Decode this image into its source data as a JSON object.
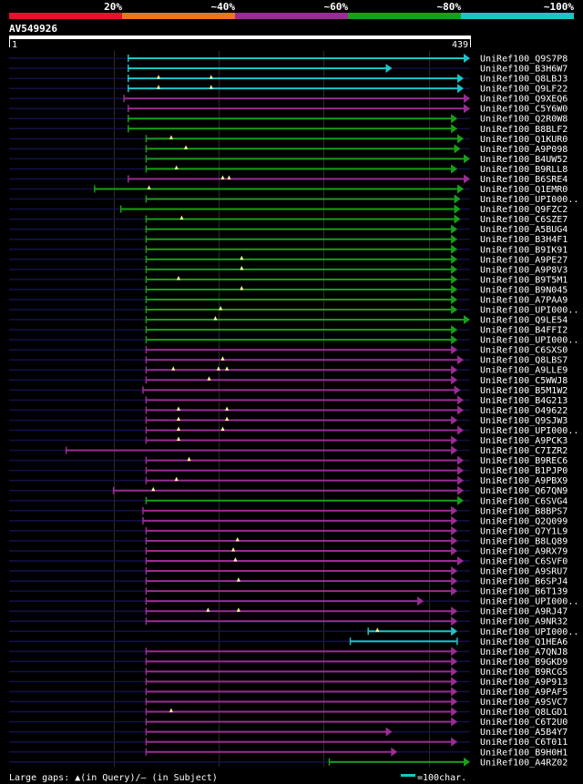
{
  "chart_data": {
    "type": "alignment",
    "query": {
      "name": "AV549926",
      "start_label": "1",
      "end_label": "439",
      "length": 439
    },
    "legend_bands": [
      {
        "label": "20%",
        "color": "#e8102a"
      },
      {
        "label": "~40%",
        "color": "#e8761c"
      },
      {
        "label": "~60%",
        "color": "#9a2c96"
      },
      {
        "label": "~80%",
        "color": "#18a018"
      },
      {
        "label": "~100%",
        "color": "#1cc4c8"
      }
    ],
    "footer": {
      "gaps": "Large gaps: ▲(in Query)/– (in Subject)",
      "scale": "=100char."
    },
    "colors": {
      "cyan": "#1cc4c8",
      "magenta": "#9a2c96",
      "green": "#18a018",
      "dim": "#12124a"
    },
    "hits": [
      {
        "name": "UniRef100_Q9S7P8",
        "color": "cyan",
        "start": 114,
        "end": 439,
        "arrow": true,
        "ld": 0,
        "td": 0,
        "gaps": []
      },
      {
        "name": "UniRef100_B3H6W7",
        "color": "cyan",
        "start": 114,
        "end": 365,
        "arrow": true,
        "ld": 0,
        "td": 0,
        "gaps": []
      },
      {
        "name": "UniRef100_Q8LBJ3",
        "color": "cyan",
        "start": 114,
        "end": 433,
        "arrow": true,
        "ld": 0,
        "td": 0,
        "gaps": [
          143,
          193
        ]
      },
      {
        "name": "UniRef100_Q9LF22",
        "color": "cyan",
        "start": 114,
        "end": 433,
        "arrow": true,
        "ld": 0,
        "td": 0,
        "gaps": [
          143,
          193
        ]
      },
      {
        "name": "UniRef100_Q9XEQ6",
        "color": "magenta",
        "start": 110,
        "end": 439,
        "arrow": true,
        "ld": 0,
        "td": 0,
        "gaps": []
      },
      {
        "name": "UniRef100_C5Y6W0",
        "color": "magenta",
        "start": 114,
        "end": 439,
        "arrow": true,
        "ld": 0,
        "td": 0,
        "gaps": []
      },
      {
        "name": "UniRef100_Q2R0W8",
        "color": "green",
        "start": 114,
        "end": 427,
        "arrow": true,
        "ld": 0,
        "td": 0,
        "gaps": []
      },
      {
        "name": "UniRef100_B8BLF2",
        "color": "green",
        "start": 114,
        "end": 427,
        "arrow": true,
        "ld": 0,
        "td": 0,
        "gaps": []
      },
      {
        "name": "UniRef100_Q1KUR0",
        "color": "green",
        "start": 131,
        "end": 433,
        "arrow": true,
        "ld": 0,
        "td": 0,
        "gaps": [
          155
        ]
      },
      {
        "name": "UniRef100_A9P098",
        "color": "green",
        "start": 131,
        "end": 430,
        "arrow": true,
        "ld": 0,
        "td": 0,
        "gaps": [
          169
        ]
      },
      {
        "name": "UniRef100_B4UW52",
        "color": "green",
        "start": 131,
        "end": 439,
        "arrow": true,
        "ld": 0,
        "td": 0,
        "gaps": []
      },
      {
        "name": "UniRef100_B9RLL8",
        "color": "green",
        "start": 131,
        "end": 427,
        "arrow": true,
        "ld": 0,
        "td": 0,
        "gaps": [
          160
        ]
      },
      {
        "name": "UniRef100_B6SRE4",
        "color": "magenta",
        "start": 114,
        "end": 439,
        "arrow": true,
        "ld": 0,
        "td": 0,
        "gaps": [
          204,
          210
        ]
      },
      {
        "name": "UniRef100_Q1EMR0",
        "color": "green",
        "start": 82,
        "end": 433,
        "arrow": true,
        "ld": 0,
        "td": 0,
        "gaps": [
          134
        ]
      },
      {
        "name": "UniRef100_UPI000..",
        "color": "green",
        "start": 131,
        "end": 430,
        "arrow": true,
        "ld": 0,
        "td": 0,
        "gaps": []
      },
      {
        "name": "UniRef100_Q9FZC2",
        "color": "green",
        "start": 107,
        "end": 430,
        "arrow": true,
        "ld": 0,
        "td": 0,
        "gaps": []
      },
      {
        "name": "UniRef100_C6SZE7",
        "color": "green",
        "start": 131,
        "end": 430,
        "arrow": true,
        "ld": 0,
        "td": 0,
        "gaps": [
          165
        ]
      },
      {
        "name": "UniRef100_A5BUG4",
        "color": "green",
        "start": 131,
        "end": 427,
        "arrow": true,
        "ld": 0,
        "td": 0,
        "gaps": []
      },
      {
        "name": "UniRef100_B3H4F1",
        "color": "green",
        "start": 131,
        "end": 427,
        "arrow": true,
        "ld": 0,
        "td": 0,
        "gaps": []
      },
      {
        "name": "UniRef100_B9IK91",
        "color": "green",
        "start": 131,
        "end": 427,
        "arrow": true,
        "ld": 0,
        "td": 0,
        "gaps": []
      },
      {
        "name": "UniRef100_A9PE27",
        "color": "green",
        "start": 131,
        "end": 427,
        "arrow": true,
        "ld": 0,
        "td": 0,
        "gaps": [
          222
        ]
      },
      {
        "name": "UniRef100_A9P8V3",
        "color": "green",
        "start": 131,
        "end": 427,
        "arrow": true,
        "ld": 0,
        "td": 0,
        "gaps": [
          222
        ]
      },
      {
        "name": "UniRef100_B9T5M1",
        "color": "green",
        "start": 131,
        "end": 427,
        "arrow": true,
        "ld": 0,
        "td": 0,
        "gaps": [
          162
        ]
      },
      {
        "name": "UniRef100_B9N045",
        "color": "green",
        "start": 131,
        "end": 427,
        "arrow": true,
        "ld": 0,
        "td": 0,
        "gaps": [
          222
        ]
      },
      {
        "name": "UniRef100_A7PAA9",
        "color": "green",
        "start": 131,
        "end": 427,
        "arrow": true,
        "ld": 0,
        "td": 0,
        "gaps": []
      },
      {
        "name": "UniRef100_UPI000..",
        "color": "green",
        "start": 131,
        "end": 427,
        "arrow": true,
        "ld": 0,
        "td": 0,
        "gaps": [
          202
        ]
      },
      {
        "name": "UniRef100_Q9LE54",
        "color": "green",
        "start": 131,
        "end": 439,
        "arrow": true,
        "ld": 0,
        "td": 0,
        "gaps": [
          197
        ]
      },
      {
        "name": "UniRef100_B4FFI2",
        "color": "green",
        "start": 131,
        "end": 427,
        "arrow": true,
        "ld": 0,
        "td": 0,
        "gaps": []
      },
      {
        "name": "UniRef100_UPI000..",
        "color": "green",
        "start": 131,
        "end": 427,
        "arrow": true,
        "ld": 0,
        "td": 0,
        "gaps": []
      },
      {
        "name": "UniRef100_C6SXS0",
        "color": "magenta",
        "start": 131,
        "end": 427,
        "arrow": true,
        "ld": 0,
        "td": 0,
        "gaps": []
      },
      {
        "name": "UniRef100_Q8LBS7",
        "color": "magenta",
        "start": 131,
        "end": 433,
        "arrow": true,
        "ld": 0,
        "td": 0,
        "gaps": [
          204
        ]
      },
      {
        "name": "UniRef100_A9LLE9",
        "color": "magenta",
        "start": 131,
        "end": 427,
        "arrow": true,
        "ld": 0,
        "td": 0,
        "gaps": [
          157,
          200,
          208
        ]
      },
      {
        "name": "UniRef100_C5WWJ8",
        "color": "magenta",
        "start": 131,
        "end": 427,
        "arrow": true,
        "ld": 0,
        "td": 0,
        "gaps": [
          191
        ]
      },
      {
        "name": "UniRef100_B5M1W2",
        "color": "magenta",
        "start": 128,
        "end": 430,
        "arrow": true,
        "ld": 0,
        "td": 0,
        "gaps": []
      },
      {
        "name": "UniRef100_B4G213",
        "color": "magenta",
        "start": 131,
        "end": 433,
        "arrow": true,
        "ld": 0,
        "td": 0,
        "gaps": []
      },
      {
        "name": "UniRef100_O49622",
        "color": "magenta",
        "start": 131,
        "end": 433,
        "arrow": true,
        "ld": 0,
        "td": 0,
        "gaps": [
          162,
          208
        ]
      },
      {
        "name": "UniRef100_Q9SJW3",
        "color": "magenta",
        "start": 131,
        "end": 427,
        "arrow": true,
        "ld": 0,
        "td": 0,
        "gaps": [
          162,
          208
        ]
      },
      {
        "name": "UniRef100_UPI000..",
        "color": "magenta",
        "start": 131,
        "end": 433,
        "arrow": true,
        "ld": 0,
        "td": 0,
        "gaps": [
          162,
          204
        ]
      },
      {
        "name": "UniRef100_A9PCK3",
        "color": "magenta",
        "start": 131,
        "end": 427,
        "arrow": true,
        "ld": 0,
        "td": 0,
        "gaps": [
          162
        ]
      },
      {
        "name": "UniRef100_C7IZR2",
        "color": "magenta",
        "start": 55,
        "end": 427,
        "arrow": true,
        "ld": 0,
        "td": 0,
        "gaps": []
      },
      {
        "name": "UniRef100_B9REC6",
        "color": "magenta",
        "start": 131,
        "end": 433,
        "arrow": true,
        "ld": 0,
        "td": 0,
        "gaps": [
          172
        ]
      },
      {
        "name": "UniRef100_B1PJP0",
        "color": "magenta",
        "start": 131,
        "end": 433,
        "arrow": true,
        "ld": 0,
        "td": 0,
        "gaps": []
      },
      {
        "name": "UniRef100_A9PBX9",
        "color": "magenta",
        "start": 131,
        "end": 433,
        "arrow": true,
        "ld": 0,
        "td": 0,
        "gaps": [
          160
        ]
      },
      {
        "name": "UniRef100_Q67QN9",
        "color": "magenta",
        "start": 100,
        "end": 433,
        "arrow": true,
        "ld": 0,
        "td": 0,
        "gaps": [
          138
        ]
      },
      {
        "name": "UniRef100_C6SVG4",
        "color": "green",
        "start": 131,
        "end": 433,
        "arrow": true,
        "ld": 0,
        "td": 0,
        "gaps": []
      },
      {
        "name": "UniRef100_B8BPS7",
        "color": "magenta",
        "start": 128,
        "end": 427,
        "arrow": true,
        "ld": 0,
        "td": 0,
        "gaps": []
      },
      {
        "name": "UniRef100_Q2Q099",
        "color": "magenta",
        "start": 128,
        "end": 427,
        "arrow": true,
        "ld": 0,
        "td": 0,
        "gaps": []
      },
      {
        "name": "UniRef100_Q7Y1L9",
        "color": "magenta",
        "start": 131,
        "end": 427,
        "arrow": true,
        "ld": 0,
        "td": 0,
        "gaps": []
      },
      {
        "name": "UniRef100_B8LQ89",
        "color": "magenta",
        "start": 131,
        "end": 427,
        "arrow": true,
        "ld": 0,
        "td": 0,
        "gaps": [
          218
        ]
      },
      {
        "name": "UniRef100_A9RX79",
        "color": "magenta",
        "start": 131,
        "end": 427,
        "arrow": true,
        "ld": 0,
        "td": 0,
        "gaps": [
          214
        ]
      },
      {
        "name": "UniRef100_C6SVF0",
        "color": "magenta",
        "start": 131,
        "end": 433,
        "arrow": true,
        "ld": 0,
        "td": 0,
        "gaps": [
          216
        ]
      },
      {
        "name": "UniRef100_A9SRU7",
        "color": "magenta",
        "start": 131,
        "end": 427,
        "arrow": true,
        "ld": 0,
        "td": 0,
        "gaps": []
      },
      {
        "name": "UniRef100_B6SPJ4",
        "color": "magenta",
        "start": 131,
        "end": 427,
        "arrow": true,
        "ld": 0,
        "td": 0,
        "gaps": [
          219
        ]
      },
      {
        "name": "UniRef100_B6T139",
        "color": "magenta",
        "start": 131,
        "end": 427,
        "arrow": true,
        "ld": 0,
        "td": 0,
        "gaps": []
      },
      {
        "name": "UniRef100_UPI000..",
        "color": "magenta",
        "start": 131,
        "end": 395,
        "arrow": true,
        "ld": 0,
        "td": 0,
        "gaps": []
      },
      {
        "name": "UniRef100_A9RJ47",
        "color": "magenta",
        "start": 131,
        "end": 427,
        "arrow": true,
        "ld": 0,
        "td": 0,
        "gaps": [
          190,
          219
        ]
      },
      {
        "name": "UniRef100_A9NR32",
        "color": "magenta",
        "start": 131,
        "end": 427,
        "arrow": true,
        "ld": 0,
        "td": 0,
        "gaps": []
      },
      {
        "name": "UniRef100_UPI000..",
        "color": "cyan",
        "start": 342,
        "end": 427,
        "arrow": true,
        "ld": 0,
        "td": 0,
        "gaps": [
          351
        ]
      },
      {
        "name": "UniRef100_Q1HEA6",
        "color": "cyan",
        "start": 325,
        "end": 427,
        "arrow": false,
        "ld": 0,
        "td": 0,
        "gaps": []
      },
      {
        "name": "UniRef100_A7QNJ8",
        "color": "magenta",
        "start": 131,
        "end": 427,
        "arrow": true,
        "ld": 0,
        "td": 0,
        "gaps": []
      },
      {
        "name": "UniRef100_B9GKD9",
        "color": "magenta",
        "start": 131,
        "end": 427,
        "arrow": true,
        "ld": 0,
        "td": 0,
        "gaps": []
      },
      {
        "name": "UniRef100_B9RCG5",
        "color": "magenta",
        "start": 131,
        "end": 427,
        "arrow": true,
        "ld": 0,
        "td": 0,
        "gaps": []
      },
      {
        "name": "UniRef100_A9P913",
        "color": "magenta",
        "start": 131,
        "end": 427,
        "arrow": true,
        "ld": 0,
        "td": 0,
        "gaps": []
      },
      {
        "name": "UniRef100_A9PAF5",
        "color": "magenta",
        "start": 131,
        "end": 427,
        "arrow": true,
        "ld": 0,
        "td": 0,
        "gaps": []
      },
      {
        "name": "UniRef100_A9SVC7",
        "color": "magenta",
        "start": 131,
        "end": 427,
        "arrow": true,
        "ld": 0,
        "td": 0,
        "gaps": []
      },
      {
        "name": "UniRef100_Q8LGD1",
        "color": "magenta",
        "start": 131,
        "end": 427,
        "arrow": true,
        "ld": 0,
        "td": 0,
        "gaps": [
          155
        ]
      },
      {
        "name": "UniRef100_C6T2U0",
        "color": "magenta",
        "start": 131,
        "end": 427,
        "arrow": true,
        "ld": 0,
        "td": 0,
        "gaps": []
      },
      {
        "name": "UniRef100_A5B4Y7",
        "color": "magenta",
        "start": 131,
        "end": 365,
        "arrow": true,
        "ld": 0,
        "td": 0,
        "gaps": []
      },
      {
        "name": "UniRef100_C6T011",
        "color": "magenta",
        "start": 131,
        "end": 427,
        "arrow": true,
        "ld": 0,
        "td": 0,
        "gaps": []
      },
      {
        "name": "UniRef100_B9H0H1",
        "color": "magenta",
        "start": 131,
        "end": 370,
        "arrow": true,
        "ld": 0,
        "td": 0,
        "gaps": []
      },
      {
        "name": "UniRef100_A4RZ02",
        "color": "green",
        "start": 305,
        "end": 439,
        "arrow": true,
        "ld": 0,
        "td": 0,
        "gaps": []
      }
    ]
  }
}
